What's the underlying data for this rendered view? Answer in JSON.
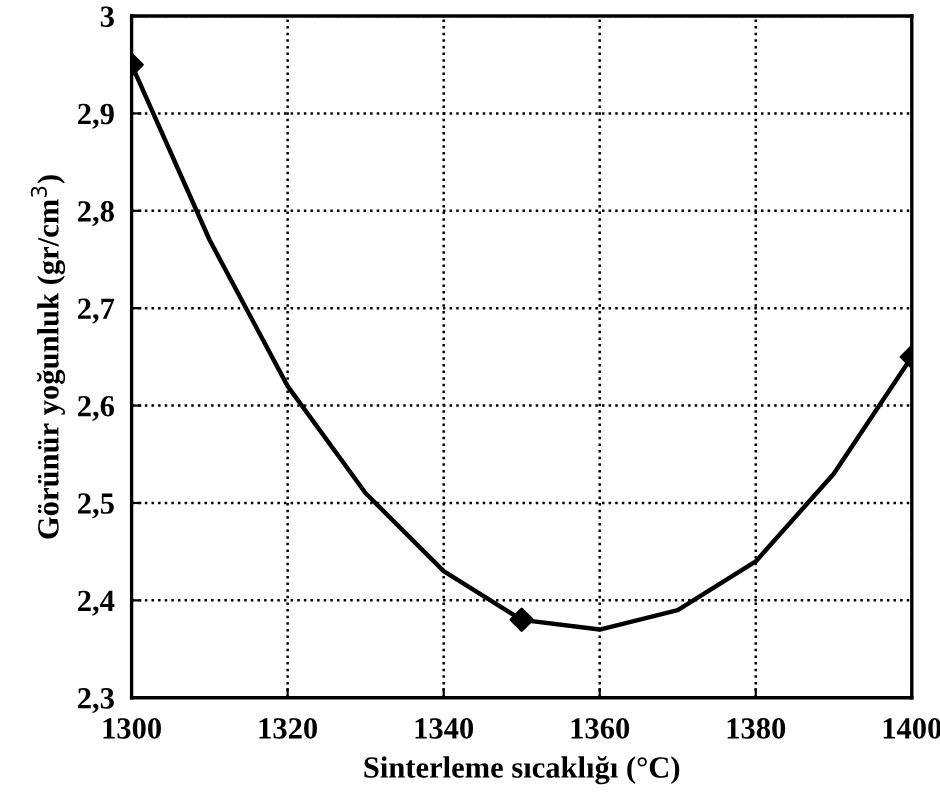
{
  "chart_data": {
    "type": "scatter",
    "xlabel": "Sinterleme sıcaklığı (°C)",
    "ylabel": "Görünür yoğunluk (gr/cm$^{3}$)",
    "series": [
      {
        "color": "#000000",
        "marker": "diamond",
        "x": [
          1300,
          1350,
          1400
        ],
        "values": [
          2.95,
          2.38,
          2.65
        ]
      },
      {
        "type": "line",
        "color": "#000000",
        "marker": "none",
        "line_style": "solid",
        "x": [
          1300,
          1310,
          1320,
          1330,
          1340,
          1350,
          1360,
          1370,
          1380,
          1390,
          1400
        ],
        "values": [
          2.95,
          2.77,
          2.62,
          2.51,
          2.43,
          2.38,
          2.37,
          2.39,
          2.44,
          2.53,
          2.65
        ]
      }
    ],
    "xlim": [
      1300,
      1400
    ],
    "xticks": [
      1300,
      1320,
      1340,
      1360,
      1380,
      1400
    ],
    "ylim": [
      2.3,
      3
    ],
    "yticks": [
      {
        "value": 2.3,
        "label": "2,3"
      },
      {
        "value": 2.4,
        "label": "2,4"
      },
      {
        "value": 2.5,
        "label": "2,5"
      },
      {
        "value": 2.6,
        "label": "2,6"
      },
      {
        "value": 2.7,
        "label": "2,7"
      },
      {
        "value": 2.8,
        "label": "2,8"
      },
      {
        "value": 2.9,
        "label": "2,9"
      },
      3
    ],
    "grid": true
  }
}
